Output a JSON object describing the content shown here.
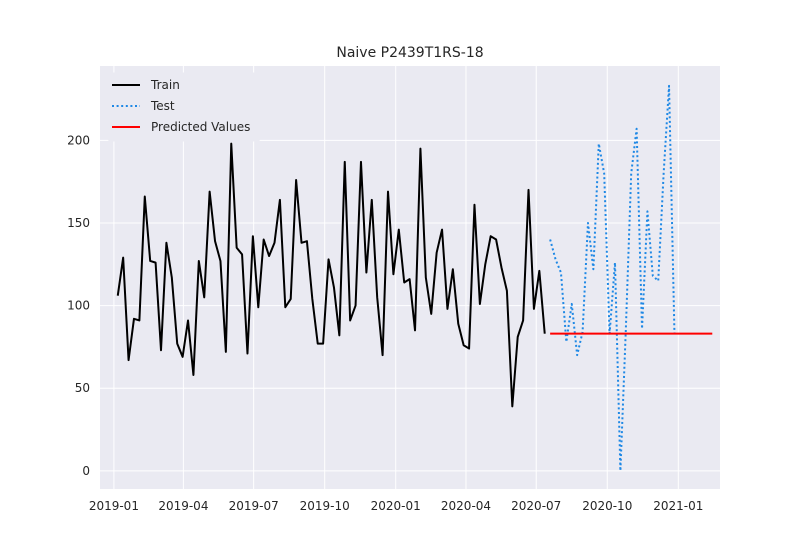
{
  "chart_data": {
    "type": "line",
    "title": "Naive P2439T1RS-18",
    "xlabel": "",
    "ylabel": "",
    "grid": true,
    "legend_position": "top-left",
    "xlim": [
      "2018-12-14",
      "2021-02-24"
    ],
    "ylim": [
      -11,
      245
    ],
    "x_ticks": [
      "2019-01-01",
      "2019-04-01",
      "2019-07-01",
      "2019-10-01",
      "2020-01-01",
      "2020-04-01",
      "2020-07-01",
      "2020-10-01",
      "2021-01-01"
    ],
    "x_tick_labels": [
      "2019-01",
      "2019-04",
      "2019-07",
      "2019-10",
      "2020-01",
      "2020-04",
      "2020-07",
      "2020-10",
      "2021-01"
    ],
    "y_ticks": [
      0,
      50,
      100,
      150,
      200
    ],
    "y_tick_labels": [
      "0",
      "50",
      "100",
      "150",
      "200"
    ],
    "series": [
      {
        "name": "Train",
        "color": "#000000",
        "style": "solid",
        "start_date": "2019-01-06",
        "step_days": 7,
        "values": [
          106,
          129,
          67,
          92,
          91,
          166,
          127,
          126,
          73,
          138,
          117,
          77,
          69,
          91,
          58,
          127,
          105,
          169,
          139,
          127,
          72,
          198,
          135,
          131,
          71,
          142,
          99,
          140,
          130,
          138,
          164,
          99,
          104,
          176,
          138,
          139,
          104,
          77,
          77,
          128,
          111,
          82,
          187,
          91,
          100,
          187,
          120,
          164,
          105,
          70,
          169,
          119,
          146,
          114,
          116,
          85,
          195,
          117,
          95,
          132,
          146,
          98,
          122,
          89,
          76,
          74,
          161,
          101,
          125,
          142,
          140,
          123,
          109,
          39,
          81,
          91,
          170,
          98,
          121,
          83
        ]
      },
      {
        "name": "Test",
        "color": "#1e88e5",
        "style": "dotted",
        "start_date": "2020-07-19",
        "step_days": 7,
        "values": [
          140,
          128,
          120,
          78,
          101,
          70,
          84,
          150,
          122,
          198,
          180,
          83,
          126,
          0,
          85,
          180,
          207,
          86,
          157,
          118,
          115,
          180,
          233,
          83
        ]
      },
      {
        "name": "Predicted Values",
        "color": "#ff0000",
        "style": "solid",
        "x": [
          "2020-07-19",
          "2021-02-14"
        ],
        "values": [
          83,
          83
        ]
      }
    ]
  }
}
